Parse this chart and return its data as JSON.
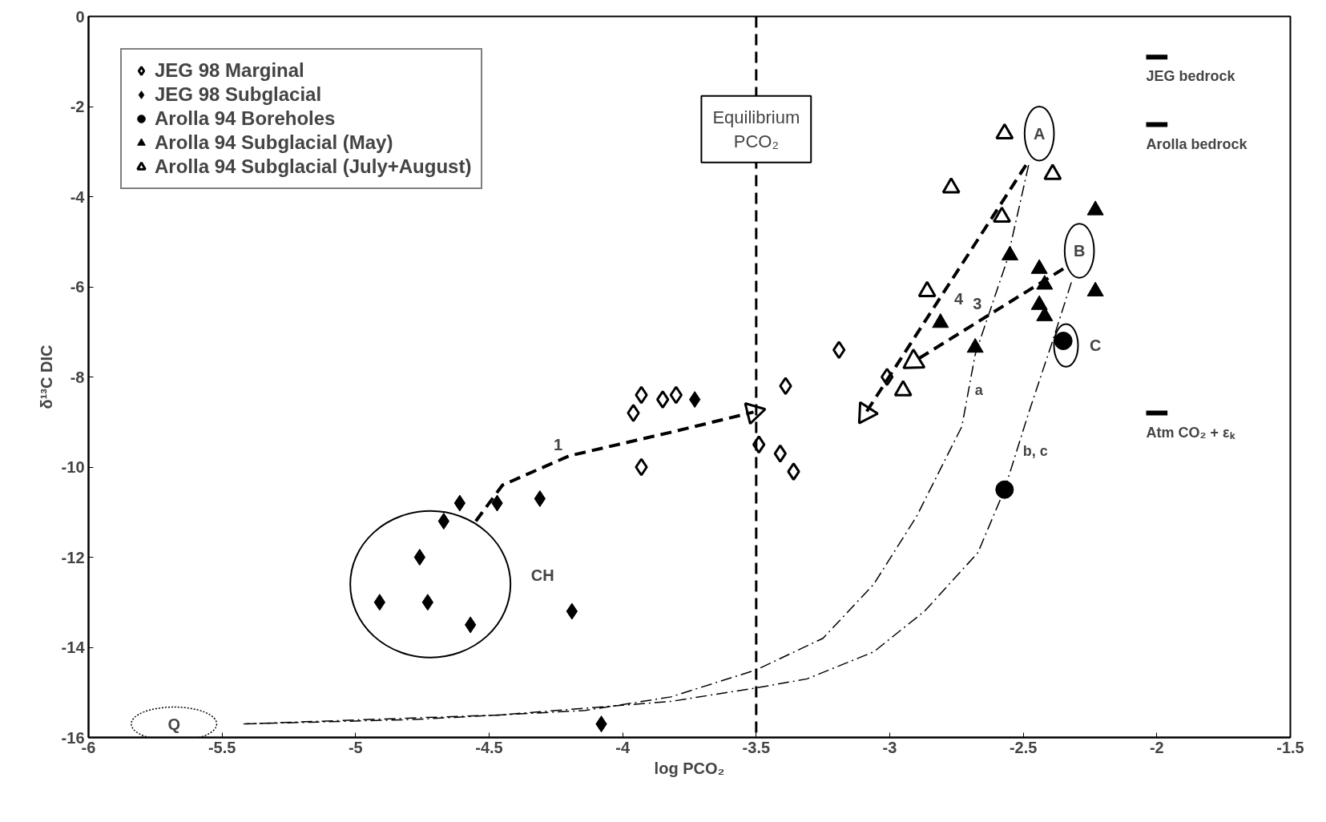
{
  "chart_data": {
    "type": "scatter",
    "xlabel": "log PCO₂",
    "ylabel": "δ¹³C DIC",
    "xlim": [
      -6,
      -1.5
    ],
    "ylim": [
      -16,
      0
    ],
    "xticks": [
      -6,
      -5.5,
      -5,
      -4.5,
      -4,
      -3.5,
      -3,
      -2.5,
      -2,
      -1.5
    ],
    "yticks": [
      -16,
      -14,
      -12,
      -10,
      -8,
      -6,
      -4,
      -2,
      0
    ],
    "grid": false,
    "legend": "top left",
    "series": [
      {
        "name": "JEG 98 Marginal",
        "color": "#ffffff",
        "marker": "diamond",
        "x": [
          -3.96,
          -3.93,
          -3.85,
          -3.8,
          -3.93,
          -3.49,
          -3.41,
          -3.36,
          -3.39,
          -3.19,
          -3.01
        ],
        "values": [
          -8.8,
          -8.4,
          -8.5,
          -8.4,
          -10.0,
          -9.5,
          -9.7,
          -10.1,
          -8.2,
          -7.4,
          -8.0
        ]
      },
      {
        "name": "JEG 98 Subglacial",
        "color": "#000000",
        "marker": "diamond",
        "x": [
          -3.73,
          -4.61,
          -4.47,
          -4.31,
          -4.67,
          -4.76,
          -4.91,
          -4.73,
          -4.57,
          -4.19,
          -4.08
        ],
        "values": [
          -8.5,
          -10.8,
          -10.8,
          -10.7,
          -11.2,
          -12.0,
          -13.0,
          -13.0,
          -13.5,
          -13.2,
          -15.7
        ]
      },
      {
        "name": "Arolla 94 Boreholes",
        "color": "#000000",
        "marker": "circle",
        "x": [
          -2.57,
          -2.35
        ],
        "values": [
          -10.5,
          -7.2
        ]
      },
      {
        "name": "Arolla 94 Subglacial (May)",
        "color": "#000000",
        "marker": "triangle",
        "x": [
          -2.23,
          -2.23,
          -2.55,
          -2.44,
          -2.42,
          -2.44,
          -2.42,
          -2.81,
          -2.68
        ],
        "values": [
          -4.3,
          -6.1,
          -5.3,
          -5.6,
          -5.95,
          -6.4,
          -6.65,
          -6.8,
          -7.35
        ]
      },
      {
        "name": "Arolla 94 Subglacial (July+August)",
        "color": "#ffffff",
        "marker": "triangle",
        "x": [
          -2.57,
          -2.39,
          -2.77,
          -2.58,
          -2.86,
          -2.95
        ],
        "values": [
          -2.6,
          -3.5,
          -3.8,
          -4.45,
          -6.1,
          -8.3
        ]
      },
      {
        "name": "a",
        "type": "line",
        "color": "#000000",
        "line_style": "dotted",
        "x": [
          -2.48,
          -2.56,
          -2.68,
          -2.73,
          -2.9,
          -3.06,
          -3.25,
          -3.5,
          -3.82,
          -4.14,
          -4.78,
          -5.42
        ],
        "values": [
          -3.3,
          -5.4,
          -7.5,
          -9.1,
          -11.1,
          -12.6,
          -13.8,
          -14.5,
          -15.1,
          -15.4,
          -15.6,
          -15.7
        ]
      },
      {
        "name": "b, c",
        "type": "line",
        "color": "#000000",
        "line_style": "dotted",
        "x": [
          -2.32,
          -2.39,
          -2.48,
          -2.57,
          -2.67,
          -2.87,
          -3.06,
          -3.31,
          -3.5,
          -3.82,
          -4.46,
          -5.42
        ],
        "values": [
          -5.9,
          -7.2,
          -8.8,
          -10.5,
          -11.9,
          -13.2,
          -14.1,
          -14.7,
          -14.9,
          -15.2,
          -15.5,
          -15.7
        ]
      },
      {
        "name": "1",
        "type": "line",
        "color": "#000000",
        "line_style": "dashed",
        "x": [
          -4.55,
          -4.45,
          -4.2,
          -3.8,
          -3.51
        ],
        "values": [
          -11.2,
          -10.4,
          -9.75,
          -9.2,
          -8.78
        ]
      },
      {
        "name": "4",
        "type": "line",
        "color": "#000000",
        "line_style": "dashed",
        "x": [
          -2.49,
          -3.09
        ],
        "values": [
          -3.3,
          -8.8
        ]
      },
      {
        "name": "3",
        "type": "line",
        "color": "#000000",
        "line_style": "dashed",
        "x": [
          -2.35,
          -2.91
        ],
        "values": [
          -5.6,
          -7.66
        ]
      }
    ],
    "ref_lines": [
      {
        "axis": "x",
        "value": -3.5,
        "label": "Equilibrium\nPCO₂",
        "line_style": "dashed"
      },
      {
        "axis": "y",
        "value": -0.9,
        "label": "JEG bedrock",
        "line_style": "solid"
      },
      {
        "axis": "y",
        "value": -2.4,
        "label": "Arolla bedrock",
        "line_style": "solid"
      },
      {
        "axis": "y",
        "value": -8.8,
        "label": "Atm CO₂ + εₖ",
        "line_style": "solid"
      }
    ],
    "annotations": [
      "CH",
      "A",
      "B",
      "C",
      "Q"
    ]
  }
}
